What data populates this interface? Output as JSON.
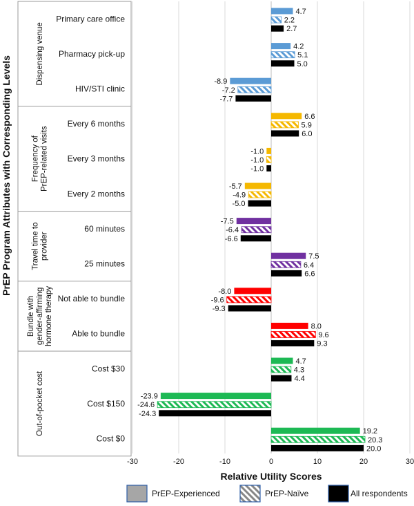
{
  "chart_data": {
    "type": "bar",
    "orientation": "horizontal",
    "xlabel": "Relative Utility Scores",
    "ylabel": "PrEP Program Attributes with Corresponding Levels",
    "xlim": [
      -30,
      30
    ],
    "xticks": [
      "-30",
      "-20",
      "-10",
      "0",
      "10",
      "20",
      "30"
    ],
    "grid": true,
    "legend_position": "bottom",
    "series": [
      {
        "name": "PrEP-Experienced",
        "style": "solid"
      },
      {
        "name": "PrEP-Naïve",
        "style": "hatched"
      },
      {
        "name": "All respondents",
        "style": "solid-black"
      }
    ],
    "groups": [
      {
        "attribute": [
          "Dispensing venue"
        ],
        "color": "#5b9bd5",
        "levels": [
          {
            "label": "Primary care office",
            "values": [
              4.7,
              2.2,
              2.7
            ],
            "labels": [
              "4.7",
              "2.2",
              "2.7"
            ]
          },
          {
            "label": "Pharmacy pick-up",
            "values": [
              4.2,
              5.1,
              5.0
            ],
            "labels": [
              "4.2",
              "5.1",
              "5.0"
            ]
          },
          {
            "label": "HIV/STI clinic",
            "values": [
              -8.9,
              -7.2,
              -7.7
            ],
            "labels": [
              "-8.9",
              "-7.2",
              "-7.7"
            ]
          }
        ]
      },
      {
        "attribute": [
          "Frequency of",
          "PrEP-related visits"
        ],
        "color": "#f5b800",
        "levels": [
          {
            "label": "Every 6 months",
            "values": [
              6.6,
              5.9,
              6.0
            ],
            "labels": [
              "6.6",
              "5.9",
              "6.0"
            ]
          },
          {
            "label": "Every 3 months",
            "values": [
              -1.0,
              -1.0,
              -1.0
            ],
            "labels": [
              "-1.0",
              "-1.0",
              "-1.0"
            ]
          },
          {
            "label": "Every 2 months",
            "values": [
              -5.7,
              -4.9,
              -5.0
            ],
            "labels": [
              "-5.7",
              "-4.9",
              "-5.0"
            ]
          }
        ]
      },
      {
        "attribute": [
          "Travel time to",
          "provider"
        ],
        "color": "#7030a0",
        "levels": [
          {
            "label": "60 minutes",
            "values": [
              -7.5,
              -6.4,
              -6.6
            ],
            "labels": [
              "-7.5",
              "-6.4",
              "-6.6"
            ]
          },
          {
            "label": "25 minutes",
            "values": [
              7.5,
              6.4,
              6.6
            ],
            "labels": [
              "7.5",
              "6.4",
              "6.6"
            ]
          }
        ]
      },
      {
        "attribute": [
          "Bundle with",
          "gender-affirming",
          "hormone therapy"
        ],
        "color": "#ff0000",
        "levels": [
          {
            "label": "Not able to bundle",
            "values": [
              -8.0,
              -9.6,
              -9.3
            ],
            "labels": [
              "-8.0",
              "-9.6",
              "-9.3"
            ]
          },
          {
            "label": "Able to bundle",
            "values": [
              8.0,
              9.6,
              9.3
            ],
            "labels": [
              "8.0",
              "9.6",
              "9.3"
            ]
          }
        ]
      },
      {
        "attribute": [
          "Out-of-pocket cost"
        ],
        "color": "#1db954",
        "levels": [
          {
            "label": "Cost $30",
            "values": [
              4.7,
              4.3,
              4.4
            ],
            "labels": [
              "4.7",
              "4.3",
              "4.4"
            ]
          },
          {
            "label": "Cost $150",
            "values": [
              -23.9,
              -24.6,
              -24.3
            ],
            "labels": [
              "-23.9",
              "-24.6",
              "-24.3"
            ]
          },
          {
            "label": "Cost $0",
            "values": [
              19.2,
              20.3,
              20.0
            ],
            "labels": [
              "19.2",
              "20.3",
              "20.0"
            ]
          }
        ]
      }
    ]
  }
}
